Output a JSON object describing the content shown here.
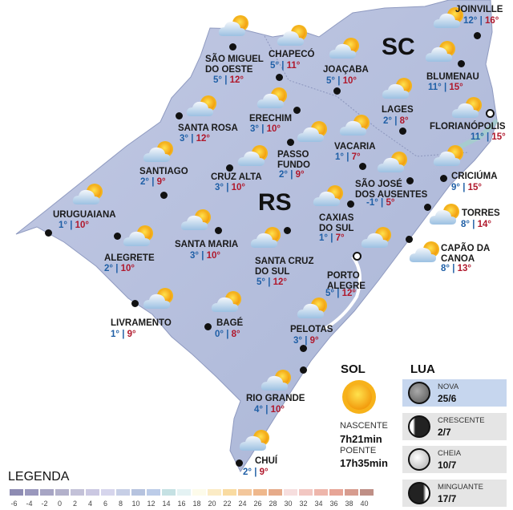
{
  "states": {
    "sc": "SC",
    "rs": "RS"
  },
  "cities": [
    {
      "name": "JOINVILLE",
      "min": "12°",
      "max": "16°"
    },
    {
      "name": "SÃO MIGUEL\nDO OESTE",
      "min": "5°",
      "max": "12°"
    },
    {
      "name": "CHAPECÓ",
      "min": "5°",
      "max": "11°"
    },
    {
      "name": "JOAÇABA",
      "min": "5°",
      "max": "10°"
    },
    {
      "name": "BLUMENAU",
      "min": "11°",
      "max": "15°"
    },
    {
      "name": "ERECHIM",
      "min": "3°",
      "max": "10°"
    },
    {
      "name": "SANTA ROSA",
      "min": "3°",
      "max": "12°"
    },
    {
      "name": "LAGES",
      "min": "2°",
      "max": "8°"
    },
    {
      "name": "FLORIANÓPOLIS",
      "min": "11°",
      "max": "15°"
    },
    {
      "name": "SANTIAGO",
      "min": "2°",
      "max": "9°"
    },
    {
      "name": "CRUZ ALTA",
      "min": "3°",
      "max": "10°"
    },
    {
      "name": "PASSO\nFUNDO",
      "min": "2°",
      "max": "9°"
    },
    {
      "name": "VACARIA",
      "min": "1°",
      "max": "7°"
    },
    {
      "name": "SÃO JOSÉ\nDOS AUSENTES",
      "min": "-1°",
      "max": "5°"
    },
    {
      "name": "CRICIÚMA",
      "min": "9°",
      "max": "15°"
    },
    {
      "name": "URUGUAIANA",
      "min": "1°",
      "max": "10°"
    },
    {
      "name": "SANTA MARIA",
      "min": "3°",
      "max": "10°"
    },
    {
      "name": "ALEGRETE",
      "min": "2°",
      "max": "10°"
    },
    {
      "name": "CAXIAS\nDO SUL",
      "min": "1°",
      "max": "7°"
    },
    {
      "name": "SANTA CRUZ\nDO SUL",
      "min": "5°",
      "max": "12°"
    },
    {
      "name": "PORTO\nALEGRE",
      "min": "5°",
      "max": "12°"
    },
    {
      "name": "TORRES",
      "min": "8°",
      "max": "14°"
    },
    {
      "name": "CAPÃO DA\nCANOA",
      "min": "8°",
      "max": "13°"
    },
    {
      "name": "LIVRAMENTO",
      "min": "1°",
      "max": "9°"
    },
    {
      "name": "BAGÉ",
      "min": "0°",
      "max": "8°"
    },
    {
      "name": "PELOTAS",
      "min": "3°",
      "max": "9°"
    },
    {
      "name": "RIO GRANDE",
      "min": "4°",
      "max": "10°"
    },
    {
      "name": "CHUÍ",
      "min": "2°",
      "max": "9°"
    }
  ],
  "legend": {
    "title": "LEGENDA",
    "ticks": [
      "-6",
      "-4",
      "-2",
      "0",
      "2",
      "4",
      "6",
      "8",
      "10",
      "12",
      "14",
      "16",
      "18",
      "20",
      "22",
      "24",
      "26",
      "28",
      "30",
      "32",
      "34",
      "36",
      "38",
      "40"
    ],
    "colors": [
      "#8e8cb3",
      "#9a98bd",
      "#a7a5c4",
      "#b3b1cb",
      "#c3c1d8",
      "#cbc8e2",
      "#d6d5ec",
      "#c7cfe6",
      "#b6c3df",
      "#bccce8",
      "#c5e1e3",
      "#e4f2f3",
      "#fdfbea",
      "#fbebc5",
      "#f9dba1",
      "#f3c79c",
      "#efb88c",
      "#e6ab8a",
      "#f6dede",
      "#f2c7c2",
      "#eeb6ab",
      "#e7a597",
      "#d79c8f",
      "#bf8f86"
    ]
  },
  "sun": {
    "title": "SOL",
    "rise_label": "NASCENTE",
    "rise": "7h21min",
    "set_label": "POENTE",
    "set": "17h35min"
  },
  "moon": {
    "title": "LUA",
    "phases": [
      {
        "name": "NOVA",
        "date": "25/6"
      },
      {
        "name": "CRESCENTE",
        "date": "2/7"
      },
      {
        "name": "CHEIA",
        "date": "10/7"
      },
      {
        "name": "MINGUANTE",
        "date": "17/7"
      }
    ]
  }
}
